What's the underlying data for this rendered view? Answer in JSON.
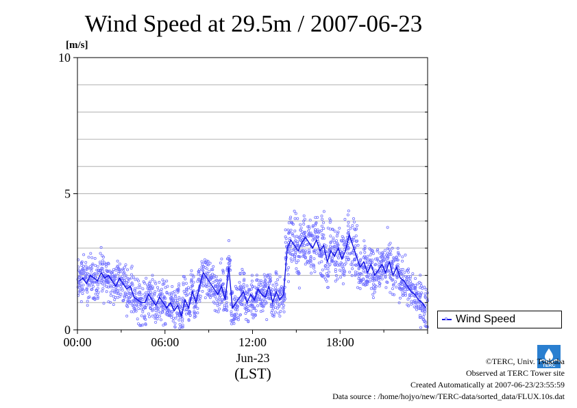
{
  "chart_data": {
    "type": "scatter",
    "title": "Wind Speed at 29.5m / 2007-06-23",
    "ylabel": "[m/s]",
    "ylim": [
      0,
      10
    ],
    "yticks": [
      0,
      5,
      10
    ],
    "xlim": [
      0,
      24
    ],
    "xticks": [
      {
        "value": 0,
        "label": "00:00"
      },
      {
        "value": 6,
        "label": "06:00"
      },
      {
        "value": 12,
        "label": "12:00"
      },
      {
        "value": 18,
        "label": "18:00"
      }
    ],
    "xsublabel": "Jun-23",
    "xlabel": "(LST)",
    "legend": {
      "position": "right",
      "entries": [
        "Wind Speed"
      ]
    },
    "grid": true,
    "series": [
      {
        "name": "Wind Speed",
        "color": "#1010e0",
        "marker_color": "#7070ff",
        "x": [
          0,
          0.25,
          0.5,
          0.75,
          1,
          1.25,
          1.5,
          1.75,
          2,
          2.25,
          2.5,
          2.75,
          3,
          3.25,
          3.5,
          3.75,
          4,
          4.25,
          4.5,
          4.75,
          5,
          5.25,
          5.5,
          5.75,
          6,
          6.25,
          6.5,
          6.75,
          7,
          7.25,
          7.5,
          7.75,
          8,
          8.25,
          8.5,
          8.75,
          9,
          9.25,
          9.5,
          9.75,
          10,
          10.25,
          10.5,
          10.75,
          11,
          11.25,
          11.5,
          11.75,
          12,
          12.25,
          12.5,
          12.75,
          13,
          13.25,
          13.5,
          13.75,
          14,
          14.25,
          14.5,
          14.75,
          15,
          15.25,
          15.5,
          15.75,
          16,
          16.25,
          16.5,
          16.75,
          17,
          17.25,
          17.5,
          17.75,
          18,
          18.25,
          18.5,
          18.75,
          19,
          19.25,
          19.5,
          19.75,
          20,
          20.25,
          20.5,
          20.75,
          21,
          21.25,
          21.5,
          21.75,
          22,
          22.25,
          22.5,
          22.75,
          23,
          23.25,
          23.5,
          23.75
        ],
        "values": [
          1.8,
          1.9,
          1.7,
          2.0,
          1.9,
          1.8,
          2.1,
          1.9,
          2.0,
          1.8,
          1.6,
          1.9,
          1.7,
          1.5,
          1.6,
          1.2,
          1.1,
          1.0,
          1.0,
          1.3,
          1.1,
          0.9,
          1.2,
          1.0,
          0.8,
          1.0,
          0.7,
          0.9,
          0.5,
          1.1,
          0.8,
          1.4,
          1.0,
          1.6,
          2.1,
          1.9,
          1.7,
          1.5,
          1.3,
          1.6,
          1.1,
          2.3,
          0.8,
          1.0,
          1.2,
          1.4,
          1.0,
          1.3,
          1.1,
          1.5,
          1.3,
          1.2,
          1.6,
          1.0,
          1.4,
          1.1,
          1.3,
          3.0,
          3.3,
          3.1,
          2.9,
          3.2,
          3.4,
          3.2,
          3.0,
          3.3,
          2.9,
          3.1,
          2.5,
          2.9,
          2.7,
          3.0,
          2.6,
          2.9,
          3.5,
          3.1,
          2.7,
          2.3,
          2.5,
          2.1,
          2.4,
          2.0,
          2.2,
          2.4,
          2.1,
          2.5,
          2.0,
          2.3,
          1.9,
          1.8,
          1.6,
          1.4,
          1.3,
          1.1,
          1.0,
          0.8
        ]
      }
    ]
  },
  "legend_label": "Wind Speed",
  "footer": {
    "copyright": "©TERC, Univ. Tsukuba",
    "observed": "Observed at TERC Tower site",
    "created": "Created Automatically at 2007-06-23/23:55:59",
    "source": "Data source : /home/hojyo/new/TERC-data/sorted_data/FLUX.10s.dat"
  },
  "logo_text": "TERC"
}
